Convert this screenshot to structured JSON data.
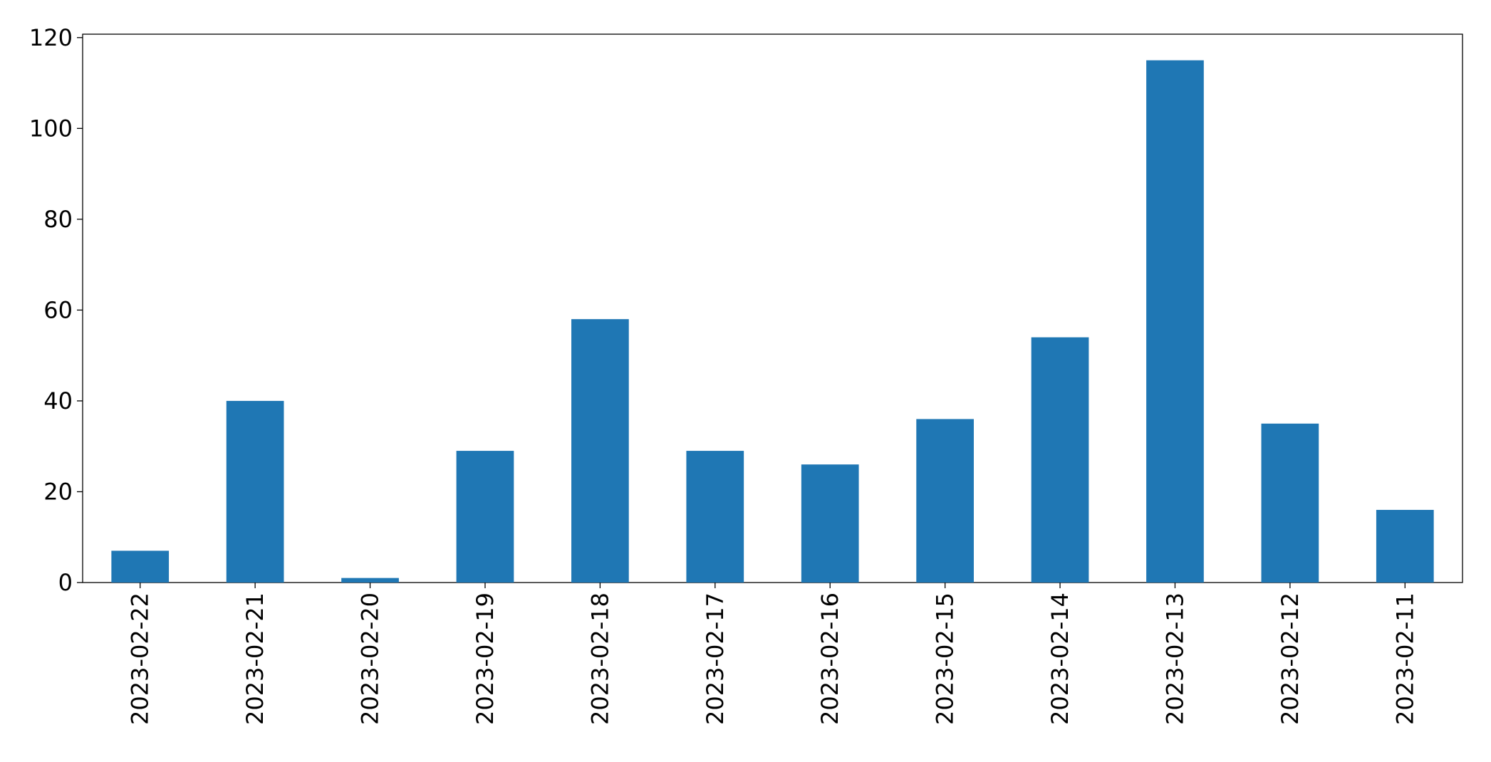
{
  "chart_data": {
    "type": "bar",
    "categories": [
      "2023-02-22",
      "2023-02-21",
      "2023-02-20",
      "2023-02-19",
      "2023-02-18",
      "2023-02-17",
      "2023-02-16",
      "2023-02-15",
      "2023-02-14",
      "2023-02-13",
      "2023-02-12",
      "2023-02-11"
    ],
    "values": [
      7,
      40,
      1,
      29,
      58,
      29,
      26,
      36,
      54,
      115,
      35,
      16
    ],
    "color": "#1f77b4",
    "ylim": [
      0,
      120.75
    ],
    "yticks": [
      0,
      20,
      40,
      60,
      80,
      100,
      120
    ],
    "grid": false
  }
}
